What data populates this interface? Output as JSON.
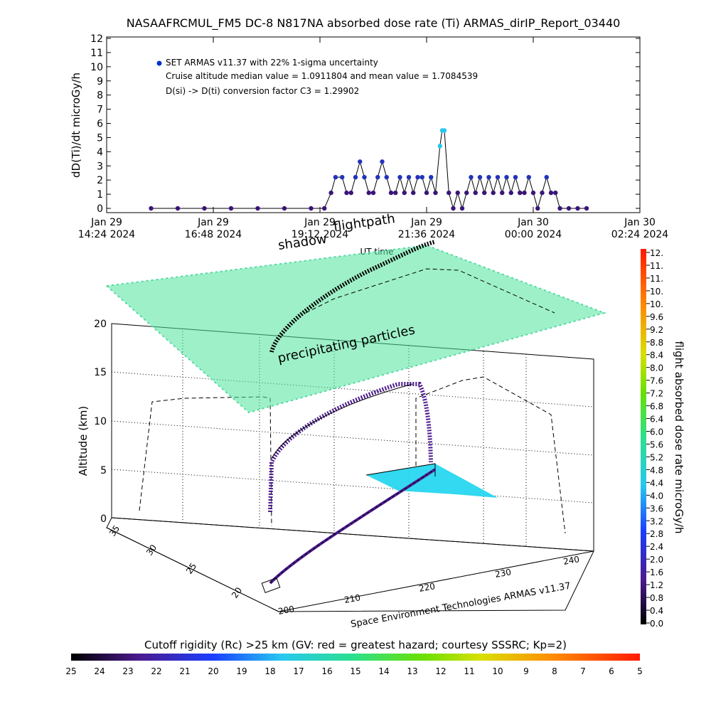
{
  "chart_data": [
    {
      "type": "scatter",
      "title": "NASAAFRCMUL_FM5 DC-8   N817NA absorbed dose rate (Ti) ARMAS_dirIP_Report_03440",
      "ylabel": "dD(Ti)/dt microGy/h",
      "xlabel": "UT time",
      "ylim": [
        0,
        12
      ],
      "yticks": [
        "0",
        "1",
        "2",
        "3",
        "4",
        "5",
        "6",
        "7",
        "8",
        "9",
        "10",
        "11",
        "12"
      ],
      "xticks": [
        {
          "day": "Jan 29",
          "time": "14:24 2024"
        },
        {
          "day": "Jan 29",
          "time": "16:48 2024"
        },
        {
          "day": "Jan 29",
          "time": "19:12 2024"
        },
        {
          "day": "Jan 29",
          "time": "21:36 2024"
        },
        {
          "day": "Jan 30",
          "time": "00:00 2024"
        },
        {
          "day": "Jan 30",
          "time": "02:24 2024"
        }
      ],
      "x_hours_range": [
        14.4,
        26.4
      ],
      "annotations": [
        "SET ARMAS v11.37 with 22% 1-sigma uncertainty",
        "Cruise altitude median value = 1.0911804 and mean value = 1.7084539",
        "D(si) -> D(ti) conversion factor C3 = 1.29902"
      ],
      "legend": "top-left",
      "series": [
        {
          "name": "SET ARMAS v11.37",
          "x_hours": [
            15.4,
            16.0,
            16.6,
            17.2,
            17.8,
            18.4,
            19.0,
            19.3,
            19.45,
            19.55,
            19.7,
            19.8,
            19.9,
            20.0,
            20.1,
            20.2,
            20.3,
            20.4,
            20.5,
            20.6,
            20.7,
            20.8,
            20.9,
            21.0,
            21.1,
            21.2,
            21.3,
            21.4,
            21.5,
            21.6,
            21.7,
            21.8,
            21.9,
            21.95,
            22.0,
            22.1,
            22.2,
            22.3,
            22.4,
            22.5,
            22.6,
            22.7,
            22.8,
            22.9,
            23.0,
            23.1,
            23.2,
            23.3,
            23.4,
            23.5,
            23.6,
            23.7,
            23.8,
            23.9,
            24.0,
            24.1,
            24.2,
            24.3,
            24.4,
            24.5,
            24.6,
            24.8,
            25.0,
            25.2
          ],
          "values": [
            0,
            0,
            0,
            0,
            0,
            0,
            0,
            0,
            1.1,
            2.2,
            2.2,
            1.1,
            1.1,
            2.2,
            3.3,
            2.2,
            1.1,
            1.1,
            2.2,
            3.3,
            2.2,
            1.1,
            1.1,
            2.2,
            1.1,
            2.2,
            1.1,
            2.2,
            2.2,
            1.1,
            2.2,
            1.1,
            4.4,
            5.5,
            5.5,
            1.1,
            0,
            1.1,
            0,
            1.1,
            2.2,
            1.1,
            2.2,
            1.1,
            2.2,
            1.1,
            2.2,
            1.1,
            2.2,
            1.1,
            2.2,
            1.1,
            1.1,
            2.2,
            1.1,
            0,
            1.1,
            2.2,
            1.1,
            1.1,
            0,
            0,
            0,
            0
          ]
        }
      ]
    },
    {
      "type": "scatter",
      "title": "",
      "zlabel": "Altitude (km)",
      "zticks": [
        "0",
        "5",
        "10",
        "15",
        "20"
      ],
      "zlim": [
        0,
        20
      ],
      "x_axis_label": "Space Environment Technologies ARMAS v11.37",
      "xticks_lon": [
        "200",
        "210",
        "220",
        "230",
        "240"
      ],
      "yticks_lat": [
        "20",
        "25",
        "30",
        "35"
      ],
      "annotations": [
        "flightpath",
        "shadow",
        "precipitating particles"
      ],
      "colorbar": {
        "label": "flight absorbed dose rate microGy/h",
        "ticks": [
          "0.0",
          "0.4",
          "0.8",
          "1.2",
          "1.6",
          "2.0",
          "2.4",
          "2.8",
          "3.2",
          "3.6",
          "4.0",
          "4.4",
          "4.8",
          "5.2",
          "5.6",
          "6.0",
          "6.4",
          "6.8",
          "7.2",
          "7.6",
          "8.0",
          "8.4",
          "8.8",
          "9.2",
          "9.6",
          "10.",
          "10.",
          "11.",
          "11.",
          "12."
        ]
      },
      "cutoff_bar": {
        "label": "Cutoff rigidity (Rc) >25 km (GV: red = greatest hazard; courtesy SSSRC; Kp=2)",
        "ticks": [
          "25",
          "24",
          "23",
          "22",
          "21",
          "20",
          "19",
          "18",
          "17",
          "16",
          "15",
          "14",
          "13",
          "12",
          "11",
          "10",
          "9",
          "8",
          "7",
          "6",
          "5"
        ]
      },
      "series": [
        {
          "name": "flightpath",
          "alt_km": [
            1,
            3,
            6,
            9,
            11,
            12,
            12.5,
            13,
            13.5,
            12,
            9,
            6,
            4
          ]
        }
      ]
    }
  ]
}
